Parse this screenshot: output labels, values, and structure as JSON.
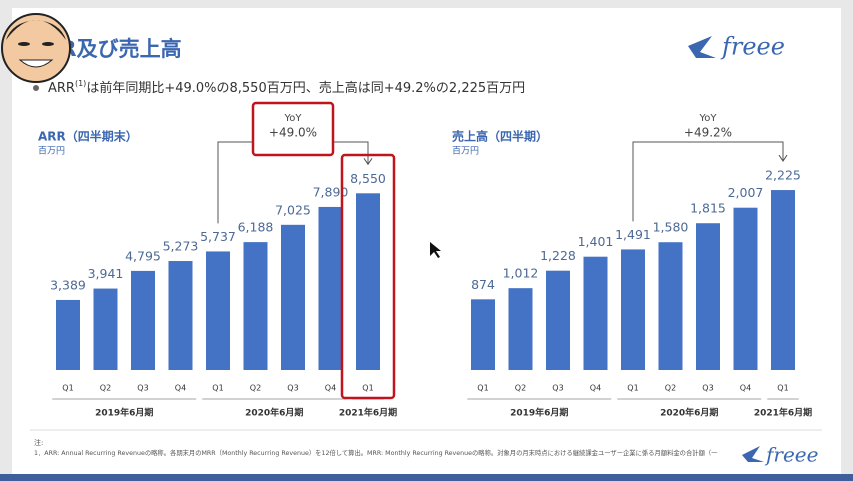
{
  "slide": {
    "title": "ARR及び売上高",
    "bullet": {
      "lead": "ARR",
      "note_mark": "(1)",
      "text": "は前年同期比+49.0%の8,550百万円、売上高は同+49.2%の2,225百万円"
    },
    "logo": "freee",
    "footnote_head": "注:",
    "footnote": "1．ARR: Annual Recurring Revenueの略称。各期末月のMRR（Monthly Recurring Revenue）を12倍して算出。MRR: Monthly Recurring Revenueの略称。対象月の月末時点における継続課金ユーザー企業に係る月額料金の合計額（一"
  },
  "chart_data": [
    {
      "type": "bar",
      "title": "ARR（四半期末）",
      "subtitle": "百万円",
      "categories": [
        "Q1",
        "Q2",
        "Q3",
        "Q4",
        "Q1",
        "Q2",
        "Q3",
        "Q4",
        "Q1"
      ],
      "groups": [
        "2019年6月期",
        "2020年6月期",
        "2021年6月期"
      ],
      "values": [
        3389,
        3941,
        4795,
        5273,
        5737,
        6188,
        7025,
        7890,
        8550
      ],
      "value_labels": [
        "3,389",
        "3,941",
        "4,795",
        "5,273",
        "5,737",
        "6,188",
        "7,025",
        "7,890",
        "8,550"
      ],
      "color": "#4472c4",
      "ylim": [
        0,
        9000
      ],
      "annotation": {
        "label": "YoY",
        "text": "+49.0%"
      }
    },
    {
      "type": "bar",
      "title": "売上高（四半期）",
      "subtitle": "百万円",
      "categories": [
        "Q1",
        "Q2",
        "Q3",
        "Q4",
        "Q1",
        "Q2",
        "Q3",
        "Q4",
        "Q1"
      ],
      "groups": [
        "2019年6月期",
        "2020年6月期",
        "2021年6月期"
      ],
      "values": [
        874,
        1012,
        1228,
        1401,
        1491,
        1580,
        1815,
        2007,
        2225
      ],
      "value_labels": [
        "874",
        "1,012",
        "1,228",
        "1,401",
        "1,491",
        "1,580",
        "1,815",
        "2,007",
        "2,225"
      ],
      "color": "#4472c4",
      "ylim": [
        0,
        2300
      ],
      "annotation": {
        "label": "YoY",
        "text": "+49.2%"
      }
    }
  ]
}
